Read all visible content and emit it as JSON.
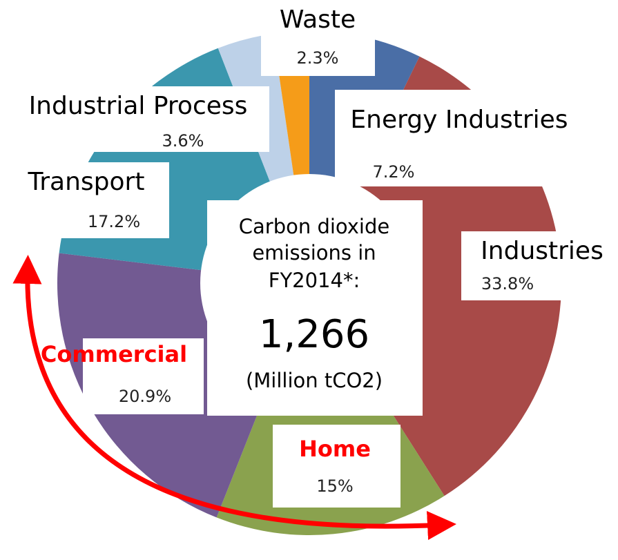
{
  "chart_data": {
    "type": "donut",
    "categories": [
      "Energy Industries",
      "Industries",
      "Home",
      "Commercial",
      "Transport",
      "Industrial Process",
      "Waste"
    ],
    "values": [
      7.2,
      33.8,
      15,
      20.9,
      17.2,
      3.6,
      2.3
    ],
    "value_labels": [
      "7.2%",
      "33.8%",
      "15%",
      "20.9%",
      "17.2%",
      "3.6%",
      "2.3%"
    ],
    "colors": [
      "#4a6ea6",
      "#a84a48",
      "#8aa24e",
      "#725a92",
      "#3b97ae",
      "#bdd1e8",
      "#f59c19"
    ],
    "highlighted": [
      "Home",
      "Commercial"
    ],
    "center_text": [
      "Carbon dioxide",
      "emissions in",
      "FY2014*:",
      "1,266",
      "(Million tCO2)"
    ]
  }
}
